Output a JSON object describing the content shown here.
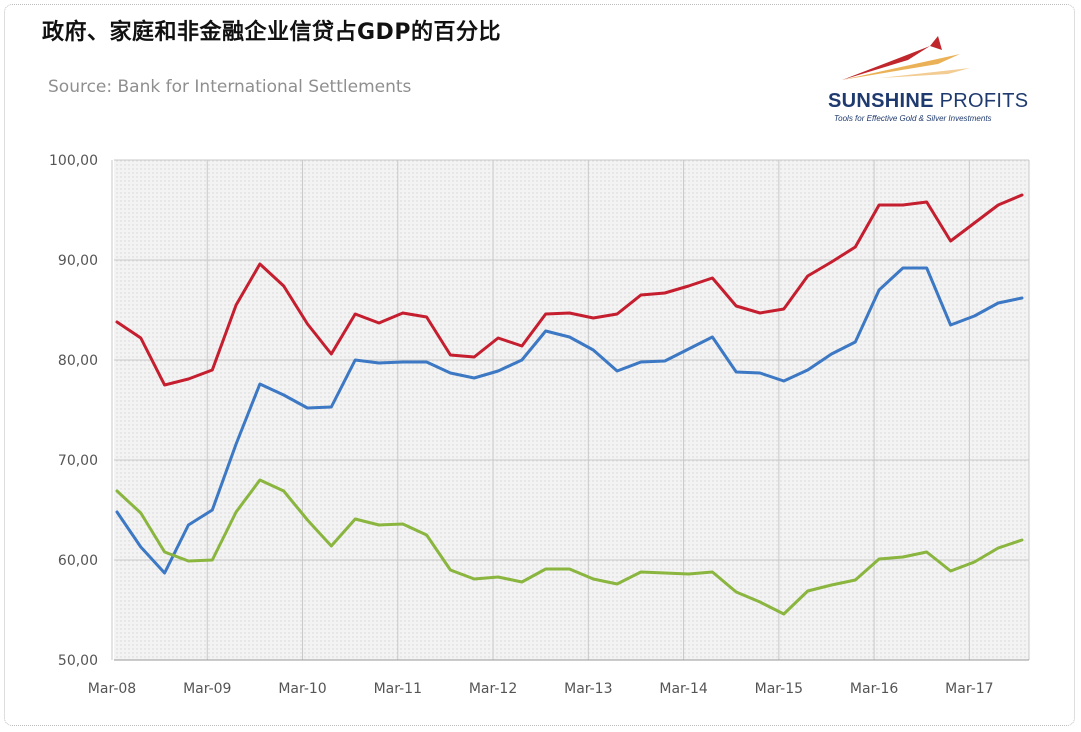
{
  "title": "政府、家庭和非金融企业信贷占GDP的百分比",
  "source": "Source: Bank for International Settlements",
  "logo": {
    "name_bold": "SUNSHINE",
    "name_light": "PROFITS",
    "tagline": "Tools for Effective Gold & Silver Investments",
    "colors": [
      "#c0272d",
      "#e8a33a"
    ]
  },
  "chart_data": {
    "type": "line",
    "x_labels": [
      "Mar-08",
      "Mar-09",
      "Mar-10",
      "Mar-11",
      "Mar-12",
      "Mar-13",
      "Mar-14",
      "Mar-15",
      "Mar-16",
      "Mar-17"
    ],
    "y_ticks": [
      "50,00",
      "60,00",
      "70,00",
      "80,00",
      "90,00",
      "100,00"
    ],
    "ylim": [
      50,
      100
    ],
    "grid": true,
    "series": [
      {
        "color": "#c41e2f",
        "values": [
          83.8,
          82.2,
          77.5,
          78.1,
          79.0,
          85.5,
          89.6,
          87.4,
          83.6,
          80.6,
          84.6,
          83.7,
          84.7,
          84.3,
          80.5,
          80.3,
          82.2,
          81.4,
          84.6,
          84.7,
          84.2,
          84.6,
          86.5,
          86.7,
          87.4,
          88.2,
          85.4,
          84.7,
          85.1,
          88.4,
          89.8,
          91.3,
          95.5,
          95.5,
          95.8,
          91.9,
          93.7,
          95.5,
          96.5
        ]
      },
      {
        "color": "#3c78c3",
        "values": [
          64.8,
          61.3,
          58.7,
          63.5,
          65.0,
          71.6,
          77.6,
          76.5,
          75.2,
          75.3,
          80.0,
          79.7,
          79.8,
          79.8,
          78.7,
          78.2,
          78.9,
          80.0,
          82.9,
          82.3,
          81.0,
          78.9,
          79.8,
          79.9,
          81.1,
          82.3,
          78.8,
          78.7,
          77.9,
          79.0,
          80.6,
          81.8,
          87.0,
          89.2,
          89.2,
          83.5,
          84.4,
          85.7,
          86.2
        ]
      },
      {
        "color": "#8ab53f",
        "values": [
          66.9,
          64.7,
          60.8,
          59.9,
          60.0,
          64.8,
          68.0,
          66.9,
          64.0,
          61.4,
          64.1,
          63.5,
          63.6,
          62.5,
          59.0,
          58.1,
          58.3,
          57.8,
          59.1,
          59.1,
          58.1,
          57.6,
          58.8,
          58.7,
          58.6,
          58.8,
          56.8,
          55.8,
          54.6,
          56.9,
          57.5,
          58.0,
          60.1,
          60.3,
          60.8,
          58.9,
          59.8,
          61.2,
          62.0
        ]
      }
    ]
  }
}
